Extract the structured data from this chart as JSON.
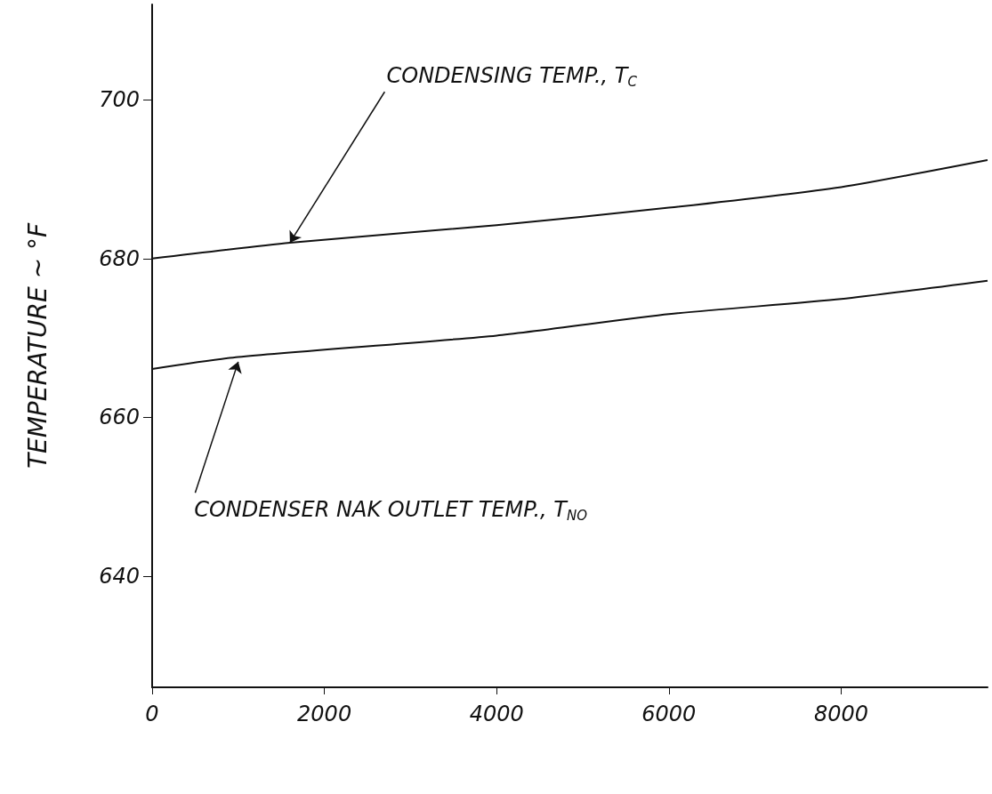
{
  "chart_data": {
    "type": "line",
    "ylabel": "TEMPERATURE ~ °F",
    "xlim": [
      0,
      9700
    ],
    "xticks": [
      0,
      2000,
      4000,
      6000,
      8000
    ],
    "ylim": [
      626,
      712
    ],
    "yticks": [
      640,
      660,
      680,
      700
    ],
    "grid": false,
    "marker": "none",
    "line_style": "solid",
    "series": [
      {
        "color": "#111111",
        "x": [
          0,
          1600,
          4000,
          6000,
          8000,
          9700
        ],
        "values": [
          680,
          682,
          684.2,
          686.4,
          689,
          692.4
        ]
      },
      {
        "color": "#111111",
        "x": [
          0,
          1000,
          4000,
          6000,
          8000,
          9700
        ],
        "values": [
          666.1,
          667.6,
          670.3,
          673,
          674.9,
          677.2
        ]
      }
    ],
    "annotations": [
      {
        "text": "CONDENSING TEMP., T$_{C}$",
        "x": 1600,
        "y": 682
      },
      {
        "text": "CONDENSER NAK OUTLET TEMP., T$_{NO}$",
        "x": 1000,
        "y": 667
      }
    ]
  }
}
